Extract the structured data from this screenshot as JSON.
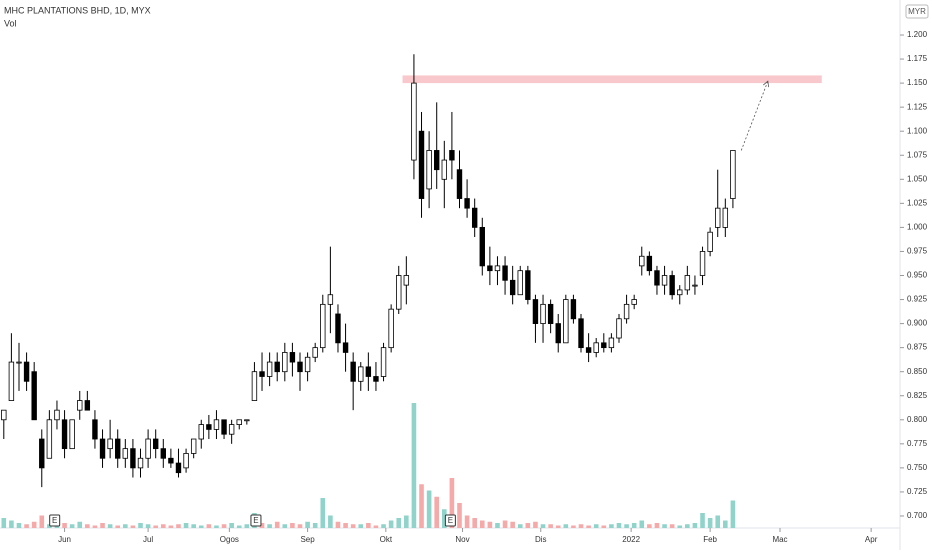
{
  "chart_data": {
    "type": "candlestick",
    "title": "MHC PLANTATIONS BHD, 1D, MYX",
    "volume_label": "Vol",
    "currency": "MYR",
    "up_color": "#26a69a",
    "down_color": "#000000",
    "volume_up_color": "#8fd3cb",
    "volume_down_color": "#f5a9a9",
    "xlim": [
      -0.5,
      118
    ],
    "ylim": [
      0.6875,
      1.2364
    ],
    "xticks": [
      {
        "value": 8,
        "label": "Jun"
      },
      {
        "value": 19,
        "label": "Jul"
      },
      {
        "value": 29.7,
        "label": "Ogos"
      },
      {
        "value": 40,
        "label": "Sep"
      },
      {
        "value": 50.3,
        "label": "Okt"
      },
      {
        "value": 60.4,
        "label": "Nov"
      },
      {
        "value": 70.7,
        "label": "Dis"
      },
      {
        "value": 82.6,
        "label": "2022"
      },
      {
        "value": 93,
        "label": "Feb"
      },
      {
        "value": 102.2,
        "label": "Mac"
      },
      {
        "value": 114.2,
        "label": "Apr"
      }
    ],
    "yticks": [
      {
        "value": 0.7,
        "label": "0.700"
      },
      {
        "value": 0.725,
        "label": "0.725"
      },
      {
        "value": 0.75,
        "label": "0.750"
      },
      {
        "value": 0.775,
        "label": "0.775"
      },
      {
        "value": 0.8,
        "label": "0.800"
      },
      {
        "value": 0.825,
        "label": "0.825"
      },
      {
        "value": 0.85,
        "label": "0.850"
      },
      {
        "value": 0.875,
        "label": "0.875"
      },
      {
        "value": 0.9,
        "label": "0.900"
      },
      {
        "value": 0.925,
        "label": "0.925"
      },
      {
        "value": 0.95,
        "label": "0.950"
      },
      {
        "value": 0.975,
        "label": "0.975"
      },
      {
        "value": 1.0,
        "label": "1.000"
      },
      {
        "value": 1.025,
        "label": "1.025"
      },
      {
        "value": 1.05,
        "label": "1.050"
      },
      {
        "value": 1.075,
        "label": "1.075"
      },
      {
        "value": 1.1,
        "label": "1.100"
      },
      {
        "value": 1.125,
        "label": "1.125"
      },
      {
        "value": 1.15,
        "label": "1.150"
      },
      {
        "value": 1.175,
        "label": "1.175"
      },
      {
        "value": 1.2,
        "label": "1.200"
      }
    ],
    "open": [
      0.8,
      0.82,
      0.86,
      0.86,
      0.85,
      0.78,
      0.76,
      0.8,
      0.8,
      0.77,
      0.81,
      0.82,
      0.8,
      0.78,
      0.77,
      0.78,
      0.76,
      0.77,
      0.75,
      0.76,
      0.78,
      0.77,
      0.76,
      0.755,
      0.75,
      0.765,
      0.78,
      0.795,
      0.79,
      0.8,
      0.785,
      0.795,
      0.8,
      0.82,
      0.85,
      0.845,
      0.86,
      0.85,
      0.87,
      0.86,
      0.85,
      0.865,
      0.875,
      0.92,
      0.91,
      0.88,
      0.86,
      0.84,
      0.855,
      0.845,
      0.845,
      0.875,
      0.915,
      0.94,
      1.07,
      1.1,
      1.04,
      1.08,
      1.05,
      1.08,
      1.06,
      1.03,
      1.02,
      1.0,
      0.96,
      0.955,
      0.96,
      0.945,
      0.93,
      0.955,
      0.925,
      0.9,
      0.92,
      0.9,
      0.88,
      0.925,
      0.905,
      0.875,
      0.87,
      0.88,
      0.875,
      0.885,
      0.905,
      0.92,
      0.96,
      0.97,
      0.955,
      0.94,
      0.95,
      0.93,
      0.935,
      0.94,
      0.95,
      0.975,
      1.0,
      1.0,
      1.03
    ],
    "high": [
      0.81,
      0.89,
      0.88,
      0.87,
      0.86,
      0.79,
      0.81,
      0.82,
      0.81,
      0.8,
      0.83,
      0.83,
      0.81,
      0.79,
      0.8,
      0.79,
      0.78,
      0.78,
      0.77,
      0.79,
      0.79,
      0.78,
      0.77,
      0.77,
      0.77,
      0.78,
      0.8,
      0.805,
      0.81,
      0.8,
      0.8,
      0.8,
      0.8,
      0.86,
      0.87,
      0.87,
      0.87,
      0.88,
      0.88,
      0.87,
      0.87,
      0.88,
      0.93,
      0.98,
      0.92,
      0.9,
      0.87,
      0.86,
      0.87,
      0.86,
      0.88,
      0.92,
      0.96,
      0.97,
      1.18,
      1.12,
      1.1,
      1.13,
      1.09,
      1.12,
      1.08,
      1.05,
      1.03,
      1.01,
      0.98,
      0.97,
      0.97,
      0.96,
      0.96,
      0.96,
      0.93,
      0.93,
      0.925,
      0.91,
      0.93,
      0.93,
      0.91,
      0.89,
      0.885,
      0.89,
      0.89,
      0.91,
      0.93,
      0.93,
      0.98,
      0.975,
      0.96,
      0.96,
      0.955,
      0.94,
      0.96,
      0.95,
      0.98,
      1.0,
      1.06,
      1.03,
      1.08
    ],
    "low": [
      0.78,
      0.82,
      0.83,
      0.83,
      0.8,
      0.73,
      0.76,
      0.79,
      0.76,
      0.77,
      0.8,
      0.81,
      0.77,
      0.75,
      0.76,
      0.75,
      0.75,
      0.74,
      0.74,
      0.75,
      0.76,
      0.75,
      0.75,
      0.74,
      0.745,
      0.76,
      0.77,
      0.78,
      0.78,
      0.78,
      0.775,
      0.79,
      0.795,
      0.82,
      0.83,
      0.835,
      0.84,
      0.84,
      0.845,
      0.83,
      0.84,
      0.86,
      0.87,
      0.89,
      0.87,
      0.85,
      0.81,
      0.83,
      0.83,
      0.83,
      0.84,
      0.87,
      0.91,
      0.92,
      1.05,
      1.01,
      1.02,
      1.04,
      1.02,
      1.05,
      1.02,
      1.01,
      0.99,
      0.95,
      0.94,
      0.94,
      0.93,
      0.92,
      0.93,
      0.92,
      0.88,
      0.88,
      0.89,
      0.87,
      0.88,
      0.9,
      0.87,
      0.86,
      0.865,
      0.87,
      0.87,
      0.88,
      0.9,
      0.915,
      0.95,
      0.95,
      0.93,
      0.93,
      0.925,
      0.92,
      0.93,
      0.93,
      0.94,
      0.97,
      0.99,
      0.99,
      1.02
    ],
    "close": [
      0.81,
      0.86,
      0.86,
      0.84,
      0.8,
      0.75,
      0.8,
      0.81,
      0.77,
      0.8,
      0.82,
      0.81,
      0.78,
      0.76,
      0.78,
      0.76,
      0.77,
      0.75,
      0.76,
      0.78,
      0.77,
      0.76,
      0.755,
      0.745,
      0.765,
      0.78,
      0.795,
      0.79,
      0.8,
      0.785,
      0.795,
      0.8,
      0.8,
      0.85,
      0.845,
      0.86,
      0.85,
      0.87,
      0.86,
      0.85,
      0.865,
      0.875,
      0.92,
      0.93,
      0.88,
      0.87,
      0.84,
      0.855,
      0.845,
      0.84,
      0.875,
      0.915,
      0.95,
      0.95,
      1.15,
      1.03,
      1.08,
      1.06,
      1.07,
      1.07,
      1.03,
      1.02,
      1.0,
      0.96,
      0.955,
      0.96,
      0.945,
      0.93,
      0.955,
      0.925,
      0.9,
      0.92,
      0.9,
      0.88,
      0.925,
      0.905,
      0.875,
      0.87,
      0.88,
      0.875,
      0.885,
      0.905,
      0.92,
      0.925,
      0.97,
      0.955,
      0.94,
      0.95,
      0.93,
      0.935,
      0.95,
      0.94,
      0.975,
      0.995,
      1.02,
      1.02,
      1.08
    ],
    "volume": [
      8,
      6,
      4,
      3,
      5,
      10,
      3,
      2,
      4,
      3,
      5,
      3,
      2,
      4,
      3,
      2,
      3,
      2,
      4,
      3,
      2,
      3,
      2,
      3,
      4,
      3,
      2,
      3,
      2,
      3,
      4,
      2,
      3,
      12,
      4,
      3,
      5,
      3,
      4,
      3,
      5,
      4,
      24,
      10,
      5,
      4,
      3,
      3,
      4,
      2,
      3,
      6,
      8,
      10,
      100,
      35,
      30,
      25,
      15,
      40,
      20,
      10,
      8,
      6,
      5,
      4,
      6,
      5,
      3,
      4,
      5,
      3,
      3,
      2,
      3,
      2,
      3,
      2,
      3,
      2,
      3,
      4,
      3,
      4,
      6,
      3,
      4,
      3,
      3,
      2,
      3,
      4,
      12,
      8,
      10,
      6,
      22
    ],
    "events": [
      {
        "x": 6.7,
        "label": "E"
      },
      {
        "x": 33.2,
        "label": "E"
      },
      {
        "x": 58.8,
        "label": "E"
      }
    ],
    "zone": {
      "x": [
        52.5,
        107.7
      ],
      "y": [
        1.15,
        1.158
      ],
      "color": "#f8c8cc"
    },
    "arrow": {
      "x": [
        97.1,
        100.6
      ],
      "y": [
        1.08,
        1.152
      ]
    }
  }
}
